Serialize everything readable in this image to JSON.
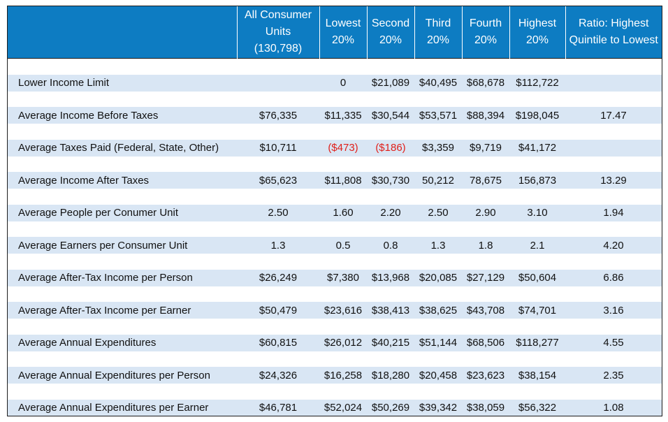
{
  "table": {
    "headers": [
      {
        "key": "label",
        "lines": [
          ""
        ]
      },
      {
        "key": "all",
        "lines": [
          "All Consumer",
          "Units",
          "(130,798)"
        ]
      },
      {
        "key": "q1",
        "lines": [
          "Lowest",
          "20%"
        ]
      },
      {
        "key": "q2",
        "lines": [
          "Second",
          "20%"
        ]
      },
      {
        "key": "q3",
        "lines": [
          "Third",
          "20%"
        ]
      },
      {
        "key": "q4",
        "lines": [
          "Fourth",
          "20%"
        ]
      },
      {
        "key": "q5",
        "lines": [
          "Highest",
          "20%"
        ]
      },
      {
        "key": "ratio",
        "lines": [
          "Ratio: Highest",
          "Quintile to Lowest"
        ]
      }
    ],
    "rows": [
      {
        "label": "Lower Income Limit",
        "cells": [
          "",
          "0",
          "$21,089",
          "$40,495",
          "$68,678",
          "$112,722",
          ""
        ]
      },
      {
        "label": "Average Income Before Taxes",
        "cells": [
          "$76,335",
          "$11,335",
          "$30,544",
          "$53,571",
          "$88,394",
          "$198,045",
          "17.47"
        ]
      },
      {
        "label": "Average Taxes Paid (Federal, State, Other)",
        "cells": [
          "$10,711",
          "($473)",
          "($186)",
          "$3,359",
          "$9,719",
          "$41,172",
          ""
        ]
      },
      {
        "label": "Average Income After Taxes",
        "cells": [
          "$65,623",
          "$11,808",
          "$30,730",
          "50,212",
          "78,675",
          "156,873",
          "13.29"
        ]
      },
      {
        "label": "Average People per Conumer Unit",
        "cells": [
          "2.50",
          "1.60",
          "2.20",
          "2.50",
          "2.90",
          "3.10",
          "1.94"
        ]
      },
      {
        "label": "Average Earners per Consumer Unit",
        "cells": [
          "1.3",
          "0.5",
          "0.8",
          "1.3",
          "1.8",
          "2.1",
          "4.20"
        ]
      },
      {
        "label": "Average After-Tax Income per Person",
        "cells": [
          "$26,249",
          "$7,380",
          "$13,968",
          "$20,085",
          "$27,129",
          "$50,604",
          "6.86"
        ]
      },
      {
        "label": "Average After-Tax Income per Earner",
        "cells": [
          "$50,479",
          "$23,616",
          "$38,413",
          "$38,625",
          "$43,708",
          "$74,701",
          "3.16"
        ]
      },
      {
        "label": "Average Annual Expenditures",
        "cells": [
          "$60,815",
          "$26,012",
          "$40,215",
          "$51,144",
          "$68,506",
          "$118,277",
          "4.55"
        ]
      },
      {
        "label": "Average Annual Expenditures per Person",
        "cells": [
          "$24,326",
          "$16,258",
          "$18,280",
          "$20,458",
          "$23,623",
          "$38,154",
          "2.35"
        ]
      },
      {
        "label": "Average Annual Expenditures per Earner",
        "cells": [
          "$46,781",
          "$52,024",
          "$50,269",
          "$39,342",
          "$38,059",
          "$56,322",
          "1.08"
        ]
      }
    ],
    "negative_color": "#e0201b",
    "header_color": "#0d7cc2",
    "stripe_color": "#d9e6f4"
  }
}
